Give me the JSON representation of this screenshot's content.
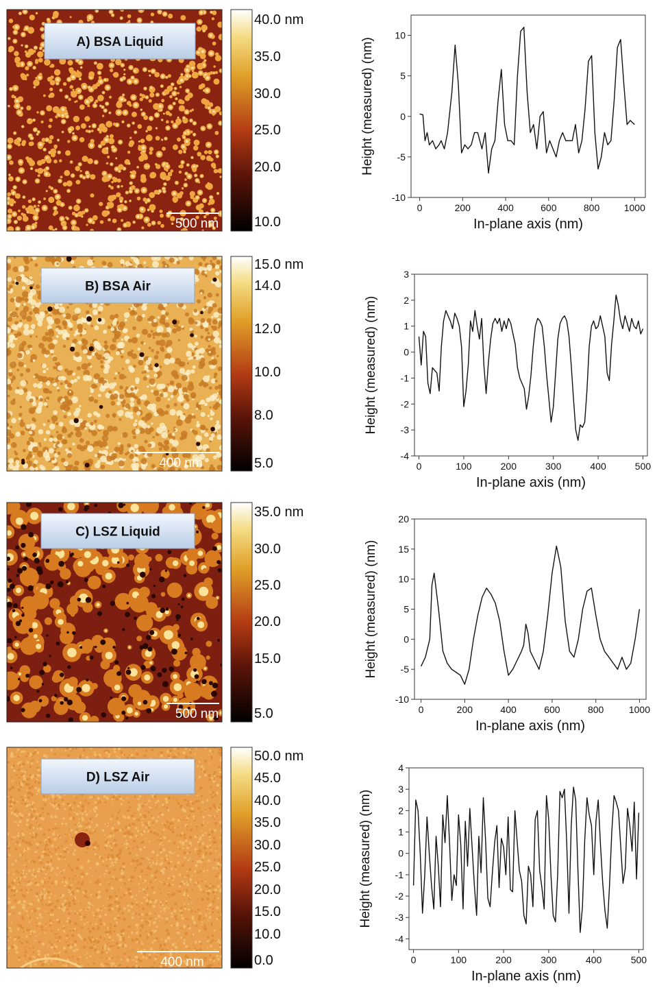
{
  "panels": [
    {
      "id": "A",
      "afm": {
        "label": "A) BSA Liquid",
        "scale_bar": "500 nm",
        "colorbar_ticks": [
          "40.0 nm",
          "35.0",
          "30.0",
          "25.0",
          "20.0",
          "10.0"
        ],
        "palette": [
          "#8a2410",
          "#efa640",
          "#f7dfa2"
        ],
        "texture": "spots"
      }
    },
    {
      "id": "B",
      "afm": {
        "label": "B) BSA Air",
        "scale_bar": "400 nm",
        "colorbar_ticks": [
          "15.0 nm",
          "14.0",
          "12.0",
          "10.0",
          "8.0",
          "5.0"
        ],
        "palette": [
          "#c77a25",
          "#e9b154",
          "#fbefc6"
        ],
        "texture": "mottled"
      }
    },
    {
      "id": "C",
      "afm": {
        "label": "C) LSZ  Liquid",
        "scale_bar": "500 nm",
        "colorbar_ticks": [
          "35.0 nm",
          "30.0",
          "25.0",
          "20.0",
          "15.0",
          "5.0"
        ],
        "palette": [
          "#7c1e10",
          "#d77a20",
          "#fbe49a"
        ],
        "texture": "blobs"
      }
    },
    {
      "id": "D",
      "afm": {
        "label": "D) LSZ  Air",
        "scale_bar": "400 nm",
        "colorbar_ticks": [
          "50.0 nm",
          "45.0",
          "40.0",
          "35.0",
          "30.0",
          "25.0",
          "20.0",
          "15.0",
          "10.0",
          "0.0"
        ],
        "palette": [
          "#d98a35",
          "#e9a04e",
          "#f3bf72"
        ],
        "texture": "fine"
      }
    }
  ],
  "chart_data": [
    {
      "type": "line",
      "xlabel": "In-plane axis (nm)",
      "ylabel": "Height (measured) (nm)",
      "xlim": [
        -40,
        1050
      ],
      "ylim": [
        -10,
        12.5
      ],
      "xticks": [
        0,
        200,
        400,
        600,
        800,
        1000
      ],
      "yticks": [
        -10,
        -5,
        0,
        5,
        10
      ],
      "grid": false,
      "x": [
        0,
        15,
        25,
        35,
        45,
        60,
        75,
        90,
        100,
        115,
        130,
        150,
        165,
        180,
        195,
        210,
        225,
        240,
        255,
        270,
        290,
        305,
        320,
        335,
        350,
        365,
        380,
        395,
        410,
        425,
        440,
        455,
        470,
        485,
        500,
        515,
        530,
        545,
        560,
        575,
        590,
        605,
        620,
        635,
        650,
        665,
        680,
        695,
        710,
        725,
        740,
        755,
        770,
        785,
        800,
        815,
        830,
        845,
        860,
        875,
        890,
        905,
        920,
        935,
        950,
        965,
        980,
        1000
      ],
      "y": [
        0.3,
        0.2,
        -3,
        -2,
        -3.5,
        -3,
        -4,
        -3.5,
        -3,
        -4,
        -2,
        3,
        8.8,
        4,
        -4.5,
        -3.5,
        -4,
        -3.5,
        -2,
        -2,
        -4,
        -2,
        -7,
        -4,
        -3,
        2,
        5.8,
        -1,
        -3,
        -3,
        -3.5,
        5,
        10.5,
        11,
        3,
        -2,
        -1,
        -4,
        0,
        0.6,
        -4.5,
        -3,
        -4,
        -5,
        -3,
        -2,
        -3,
        -3,
        -3,
        -1,
        -4.5,
        -3,
        1,
        6.8,
        7.5,
        -2,
        -6.5,
        -5,
        -2,
        -3.5,
        -3,
        2,
        8.5,
        9.5,
        4,
        -1,
        -0.5,
        -1
      ]
    },
    {
      "type": "line",
      "xlabel": "In-plane axis (nm)",
      "ylabel": "Height (measured) (nm)",
      "xlim": [
        -10,
        510
      ],
      "ylim": [
        -4,
        3
      ],
      "xticks": [
        0,
        100,
        200,
        300,
        400,
        500
      ],
      "yticks": [
        -4,
        -3,
        -2,
        -1,
        0,
        1,
        2,
        3
      ],
      "grid": false,
      "x": [
        0,
        5,
        10,
        15,
        20,
        25,
        30,
        35,
        40,
        45,
        50,
        55,
        60,
        65,
        70,
        75,
        80,
        85,
        90,
        95,
        100,
        105,
        110,
        115,
        120,
        125,
        130,
        135,
        140,
        145,
        150,
        155,
        160,
        165,
        170,
        175,
        180,
        185,
        190,
        195,
        200,
        205,
        210,
        215,
        220,
        225,
        230,
        235,
        240,
        245,
        250,
        255,
        260,
        265,
        270,
        275,
        280,
        285,
        290,
        295,
        300,
        305,
        310,
        315,
        320,
        325,
        330,
        335,
        340,
        345,
        350,
        355,
        360,
        365,
        370,
        375,
        380,
        385,
        390,
        395,
        400,
        405,
        410,
        415,
        420,
        425,
        430,
        435,
        440,
        445,
        450,
        455,
        460,
        465,
        470,
        475,
        480,
        485,
        490,
        495,
        500
      ],
      "y": [
        0.6,
        -0.5,
        0.8,
        0.6,
        -1.2,
        -1.6,
        -0.6,
        -0.7,
        -0.8,
        -1.5,
        0.2,
        1.2,
        1.6,
        1.4,
        1.2,
        0.9,
        1.5,
        1.3,
        1.0,
        0.2,
        -2.1,
        -1.5,
        -0.5,
        1.2,
        0.8,
        1.6,
        1.0,
        0.5,
        1.3,
        -0.5,
        -1.6,
        -0.4,
        0.5,
        1.1,
        1.3,
        1.1,
        1.3,
        0.8,
        1.2,
        0.9,
        1.3,
        1.1,
        0.7,
        0.3,
        -0.6,
        -1.0,
        -1.2,
        -1.4,
        -2.2,
        -1.7,
        -0.9,
        0.2,
        1.0,
        1.3,
        1.2,
        1.0,
        0.2,
        -0.9,
        -1.8,
        -2.7,
        -2.1,
        -0.8,
        0.5,
        1.1,
        1.3,
        1.4,
        1.2,
        0.6,
        -0.5,
        -1.8,
        -3.0,
        -3.4,
        -2.8,
        -2.9,
        -2.7,
        -1.5,
        0.2,
        1.0,
        1.2,
        0.9,
        1.0,
        1.4,
        1.0,
        0.6,
        -0.8,
        -1.1,
        0.3,
        1.2,
        2.2,
        1.8,
        1.2,
        0.9,
        1.4,
        1.1,
        0.8,
        1.3,
        1.0,
        0.9,
        1.2,
        0.7,
        0.9
      ]
    },
    {
      "type": "line",
      "xlabel": "In-plane axis (nm)",
      "ylabel": "Height (measured) (nm)",
      "xlim": [
        -30,
        1030
      ],
      "ylim": [
        -10,
        20
      ],
      "xticks": [
        0,
        200,
        400,
        600,
        800,
        1000
      ],
      "yticks": [
        -10,
        -5,
        0,
        5,
        10,
        15,
        20
      ],
      "grid": false,
      "x": [
        0,
        20,
        40,
        50,
        60,
        70,
        80,
        100,
        120,
        140,
        160,
        180,
        200,
        220,
        240,
        260,
        280,
        300,
        320,
        340,
        360,
        380,
        400,
        420,
        440,
        460,
        470,
        480,
        490,
        500,
        520,
        540,
        560,
        580,
        600,
        620,
        640,
        660,
        680,
        700,
        720,
        740,
        760,
        780,
        800,
        820,
        840,
        860,
        880,
        900,
        920,
        940,
        960,
        980,
        1000
      ],
      "y": [
        -4.5,
        -3,
        0,
        9,
        11,
        8,
        5,
        -2,
        -4,
        -5,
        -5.5,
        -6,
        -7.5,
        -5,
        0,
        4,
        7,
        8.5,
        7.5,
        6,
        3,
        -2,
        -6,
        -5,
        -3.5,
        -2,
        -1,
        2.5,
        1,
        -2,
        -3.5,
        -5,
        -2,
        4,
        11,
        15.5,
        12,
        3,
        -2,
        -3,
        0,
        5,
        8,
        8.5,
        4,
        0,
        -2,
        -3,
        -4,
        -5,
        -3,
        -5,
        -4,
        0,
        5
      ]
    },
    {
      "type": "line",
      "xlabel": "In-plane axis (nm)",
      "ylabel": "Height (measured) (nm)",
      "xlim": [
        -10,
        510
      ],
      "ylim": [
        -4.5,
        4
      ],
      "xticks": [
        0,
        100,
        200,
        300,
        400,
        500
      ],
      "yticks": [
        -4,
        -3,
        -2,
        -1,
        0,
        1,
        2,
        3,
        4
      ],
      "grid": false,
      "x": [
        0,
        5,
        10,
        15,
        20,
        25,
        30,
        35,
        40,
        45,
        50,
        55,
        60,
        65,
        70,
        75,
        80,
        85,
        90,
        95,
        100,
        105,
        110,
        115,
        120,
        125,
        130,
        135,
        140,
        145,
        150,
        155,
        160,
        165,
        170,
        175,
        180,
        185,
        190,
        195,
        200,
        205,
        210,
        215,
        220,
        225,
        230,
        235,
        240,
        245,
        250,
        255,
        260,
        265,
        270,
        275,
        280,
        285,
        290,
        295,
        300,
        305,
        310,
        315,
        320,
        325,
        330,
        335,
        340,
        345,
        350,
        355,
        360,
        365,
        370,
        375,
        380,
        385,
        390,
        395,
        400,
        405,
        410,
        415,
        420,
        425,
        430,
        435,
        440,
        445,
        450,
        455,
        460,
        465,
        470,
        475,
        480,
        485,
        490,
        495,
        500
      ],
      "y": [
        -1.5,
        2.5,
        2,
        0,
        -2.8,
        -1,
        1.7,
        0,
        -1.5,
        -2.6,
        0.8,
        -0.6,
        -2.5,
        1.8,
        0.5,
        2.7,
        0.5,
        -2.2,
        -1.0,
        -1.5,
        1.8,
        0.4,
        -2.6,
        1.5,
        -0.6,
        2.1,
        0.3,
        -1.5,
        -2.9,
        0.8,
        -0.9,
        2.6,
        0.6,
        -2.1,
        -2.5,
        -0.9,
        0.5,
        1.3,
        -1.6,
        0.7,
        0.3,
        -1.0,
        1.7,
        -1.7,
        -1.8,
        2.0,
        0.6,
        -0.8,
        -1.3,
        -2.9,
        -3.3,
        -0.6,
        -1.0,
        -2.5,
        1.6,
        2.0,
        -0.8,
        -1.6,
        -2.6,
        2.7,
        1.6,
        -1.0,
        -2.9,
        -3.2,
        -1.0,
        2.9,
        2.6,
        3.0,
        0.5,
        -2.8,
        1.3,
        3.1,
        2.5,
        -0.8,
        -3.7,
        -2.5,
        0.6,
        2.6,
        1.8,
        1.3,
        -1.0,
        1.5,
        2.5,
        0.4,
        -1.4,
        -2.7,
        -3.5,
        -1.5,
        1.0,
        2.7,
        2.4,
        2.0,
        0.3,
        -1.4,
        -0.7,
        2.1,
        1.3,
        0.1,
        2.4,
        -1.2,
        1.9
      ]
    }
  ]
}
